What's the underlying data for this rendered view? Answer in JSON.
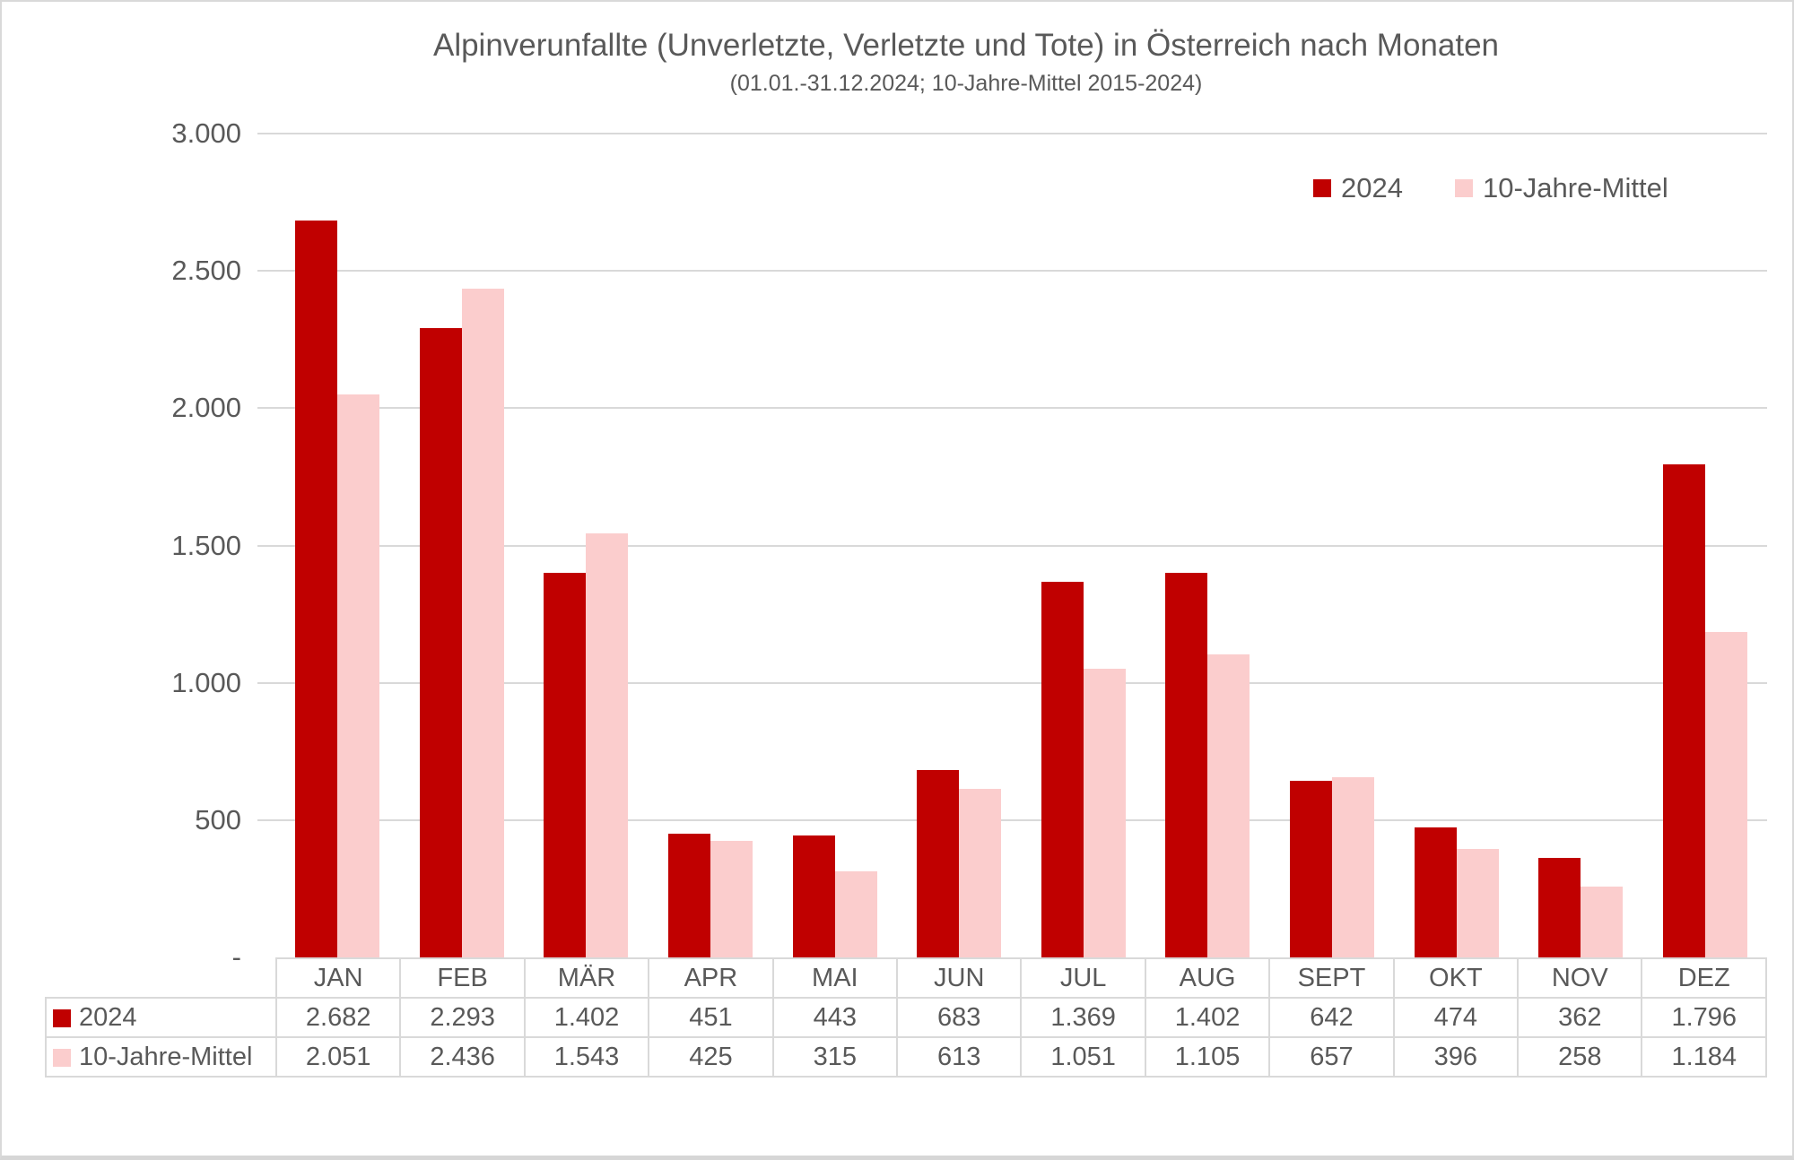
{
  "colors": {
    "series_2024": "#C00000",
    "series_mittel": "#FBCDCD",
    "text": "#595959",
    "gridline": "#D9D9D9",
    "background": "#FFFFFF"
  },
  "chart_data": {
    "type": "bar",
    "title": "Alpinverunfallte (Unverletzte, Verletzte und Tote) in Österreich nach Monaten",
    "subtitle": "(01.01.-31.12.2024; 10-Jahre-Mittel 2015-2024)",
    "categories": [
      "JAN",
      "FEB",
      "MÄR",
      "APR",
      "MAI",
      "JUN",
      "JUL",
      "AUG",
      "SEPT",
      "OKT",
      "NOV",
      "DEZ"
    ],
    "series": [
      {
        "name": "2024",
        "color": "#C00000",
        "values": [
          2682,
          2293,
          1402,
          451,
          443,
          683,
          1369,
          1402,
          642,
          474,
          362,
          1796
        ],
        "values_formatted": [
          "2.682",
          "2.293",
          "1.402",
          "451",
          "443",
          "683",
          "1.369",
          "1.402",
          "642",
          "474",
          "362",
          "1.796"
        ]
      },
      {
        "name": "10-Jahre-Mittel",
        "color": "#FBCDCD",
        "values": [
          2051,
          2436,
          1543,
          425,
          315,
          613,
          1051,
          1105,
          657,
          396,
          258,
          1184
        ],
        "values_formatted": [
          "2.051",
          "2.436",
          "1.543",
          "425",
          "315",
          "613",
          "1.051",
          "1.105",
          "657",
          "396",
          "258",
          "1.184"
        ]
      }
    ],
    "y_axis": {
      "min": 0,
      "max": 3000,
      "step": 500,
      "tick_labels": [
        "3.000",
        "2.500",
        "2.000",
        "1.500",
        "1.000",
        "500",
        "-"
      ]
    },
    "xlabel": "",
    "ylabel": "",
    "grid": true,
    "legend_position": "top-right",
    "data_table": true
  }
}
